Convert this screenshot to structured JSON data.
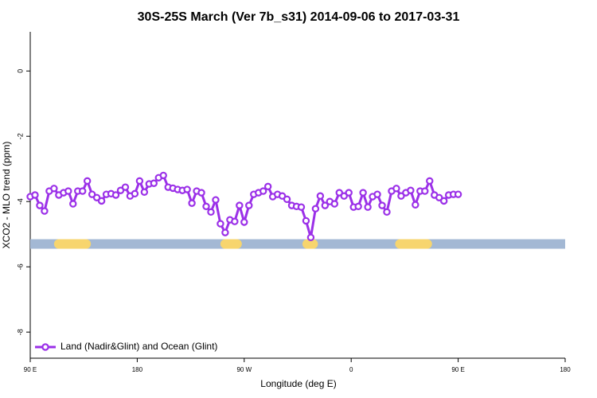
{
  "chart_data": {
    "type": "line",
    "title": "30S-25S March (Ver 7b_s31)   2014-09-06 to 2017-03-31",
    "x_label": "Longitude (deg E)",
    "y_label": "XCO2 - MLO trend (ppm)",
    "x": [
      90,
      94,
      98,
      102,
      106,
      110,
      114,
      118,
      122,
      126,
      130,
      134,
      138,
      142,
      146,
      150,
      154,
      158,
      162,
      166,
      170,
      174,
      178,
      182,
      186,
      190,
      194,
      198,
      202,
      206,
      210,
      214,
      218,
      222,
      226,
      230,
      234,
      238,
      242,
      246,
      250,
      254,
      258,
      262,
      266,
      270,
      274,
      278,
      282,
      286,
      290,
      294,
      298,
      302,
      306,
      310,
      314,
      318,
      322,
      326,
      330,
      334,
      338,
      342,
      346,
      350,
      354,
      358,
      362,
      366,
      370,
      374,
      378,
      382,
      386,
      390,
      394,
      398,
      402,
      406,
      410,
      414,
      418,
      422,
      426,
      430,
      434,
      438,
      442,
      446,
      450
    ],
    "series": [
      {
        "name": "Land (Nadir&Glint) and Ocean (Glint)",
        "color": "#9b30e8",
        "values": [
          -3.85,
          -3.8,
          -4.12,
          -4.29,
          -3.68,
          -3.6,
          -3.8,
          -3.73,
          -3.68,
          -4.07,
          -3.68,
          -3.68,
          -3.37,
          -3.78,
          -3.88,
          -3.98,
          -3.78,
          -3.76,
          -3.8,
          -3.66,
          -3.56,
          -3.83,
          -3.76,
          -3.37,
          -3.71,
          -3.46,
          -3.44,
          -3.27,
          -3.2,
          -3.56,
          -3.59,
          -3.63,
          -3.66,
          -3.63,
          -4.05,
          -3.68,
          -3.73,
          -4.15,
          -4.32,
          -3.95,
          -4.68,
          -4.95,
          -4.56,
          -4.61,
          -4.12,
          -4.63,
          -4.12,
          -3.78,
          -3.73,
          -3.68,
          -3.54,
          -3.85,
          -3.78,
          -3.83,
          -3.93,
          -4.12,
          -4.15,
          -4.17,
          -4.59,
          -5.1,
          -4.22,
          -3.83,
          -4.12,
          -4.0,
          -4.07,
          -3.73,
          -3.83,
          -3.73,
          -4.17,
          -4.15,
          -3.73,
          -4.17,
          -3.85,
          -3.78,
          -4.12,
          -4.32,
          -3.68,
          -3.6,
          -3.83,
          -3.73,
          -3.66,
          -4.1,
          -3.68,
          -3.68,
          -3.37,
          -3.8,
          -3.88,
          -3.98,
          -3.8,
          -3.78,
          -3.78
        ]
      }
    ],
    "xlim": [
      90,
      540
    ],
    "ylim": [
      -8.8,
      1.2
    ],
    "xticks": [
      {
        "value": 90,
        "label": "90 E"
      },
      180,
      {
        "value": 270,
        "label": "90 W"
      },
      {
        "value": 360,
        "label": "0"
      },
      {
        "value": 450,
        "label": "90 E"
      },
      {
        "value": 540,
        "label": "180"
      }
    ],
    "yticks": [
      0,
      -2,
      -4,
      -6,
      -8
    ],
    "surface_band": {
      "y": -5.3,
      "ocean_color": "#a3b8d4",
      "land_color": "#f7d56e",
      "land": [
        [
          110,
          141
        ],
        [
          250,
          268
        ],
        [
          319,
          332
        ],
        [
          397,
          428
        ]
      ]
    },
    "legend": "lower left"
  }
}
